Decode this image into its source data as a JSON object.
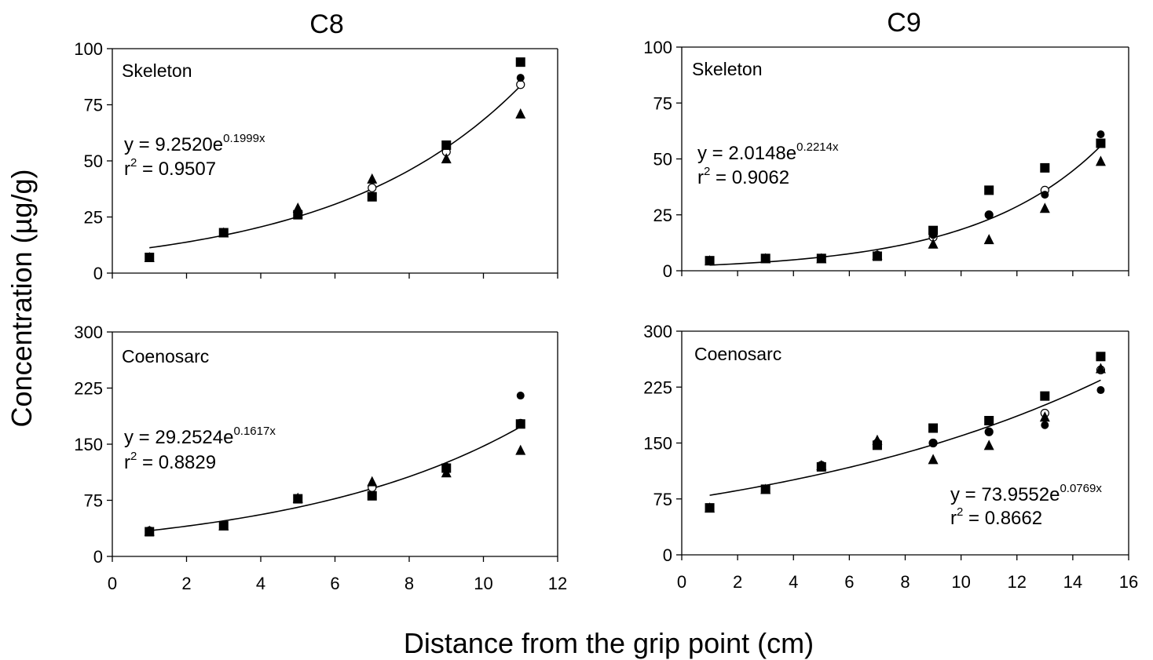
{
  "figure": {
    "column_titles": [
      "C8",
      "C9"
    ],
    "xlabel": "Distance from the grip point (cm)",
    "ylabel": "Concentration (µg/g)"
  },
  "chart_data": [
    {
      "type": "scatter",
      "column": "C8",
      "panel_label": "Skeleton",
      "xlim": [
        0,
        12
      ],
      "xticks": [
        0,
        2,
        4,
        6,
        8,
        10,
        12
      ],
      "ylim": [
        0,
        100
      ],
      "yticks": [
        0,
        25,
        50,
        75,
        100
      ],
      "show_x_tick_labels": false,
      "x": [
        1,
        3,
        5,
        7,
        9,
        11
      ],
      "series": [
        {
          "marker": "circle-filled",
          "values": [
            7,
            18,
            26,
            34,
            57,
            87
          ]
        },
        {
          "marker": "circle-open",
          "values": [
            7,
            18,
            27,
            38,
            54,
            84
          ]
        },
        {
          "marker": "triangle",
          "values": [
            7,
            18,
            29,
            42,
            51,
            71
          ]
        },
        {
          "marker": "square",
          "values": [
            7,
            18,
            26,
            34,
            57,
            94
          ]
        }
      ],
      "fit": {
        "a": 9.252,
        "b": 0.1999,
        "x_range": [
          1,
          11
        ]
      },
      "equation": {
        "lhs": "y = 9.2520e",
        "exp": "0.1999x",
        "r_pre": "r",
        "r_exp": "2",
        "r_post": " = 0.9507"
      }
    },
    {
      "type": "scatter",
      "column": "C9",
      "panel_label": "Skeleton",
      "xlim": [
        0,
        16
      ],
      "xticks": [
        0,
        2,
        4,
        6,
        8,
        10,
        12,
        14,
        16
      ],
      "ylim": [
        0,
        100
      ],
      "yticks": [
        0,
        25,
        50,
        75,
        100
      ],
      "show_x_tick_labels": false,
      "x": [
        1,
        3,
        5,
        7,
        9,
        11,
        13,
        15
      ],
      "series": [
        {
          "marker": "circle-filled",
          "values": [
            4.5,
            5.5,
            5.5,
            7,
            16,
            25,
            34,
            61
          ]
        },
        {
          "marker": "circle-open",
          "values": [
            4.5,
            5.5,
            5.5,
            7,
            15,
            25,
            36,
            57
          ]
        },
        {
          "marker": "triangle",
          "values": [
            4.5,
            5.5,
            5.5,
            7,
            12,
            14,
            28,
            49
          ]
        },
        {
          "marker": "square",
          "values": [
            4.5,
            5.5,
            5.5,
            6.5,
            18,
            36,
            46,
            57
          ]
        }
      ],
      "fit": {
        "a": 2.0148,
        "b": 0.2214,
        "x_range": [
          1,
          15
        ]
      },
      "equation": {
        "lhs": "y = 2.0148e",
        "exp": "0.2214x",
        "r_pre": "r",
        "r_exp": "2",
        "r_post": " = 0.9062"
      }
    },
    {
      "type": "scatter",
      "column": "C8",
      "panel_label": "Coenosarc",
      "xlim": [
        0,
        12
      ],
      "xticks": [
        0,
        2,
        4,
        6,
        8,
        10,
        12
      ],
      "ylim": [
        0,
        300
      ],
      "yticks": [
        0,
        75,
        150,
        225,
        300
      ],
      "show_x_tick_labels": true,
      "x": [
        1,
        3,
        5,
        7,
        9,
        11
      ],
      "series": [
        {
          "marker": "circle-filled",
          "values": [
            35,
            42,
            78,
            82,
            120,
            215
          ]
        },
        {
          "marker": "circle-open",
          "values": [
            34,
            41,
            77,
            92,
            118,
            178
          ]
        },
        {
          "marker": "triangle",
          "values": [
            34,
            41,
            78,
            100,
            112,
            142
          ]
        },
        {
          "marker": "square",
          "values": [
            33,
            41,
            77,
            81,
            118,
            177
          ]
        }
      ],
      "fit": {
        "a": 29.2524,
        "b": 0.1617,
        "x_range": [
          1,
          11
        ]
      },
      "equation": {
        "lhs": "y = 29.2524e",
        "exp": "0.1617x",
        "r_pre": "r",
        "r_exp": "2",
        "r_post": " = 0.8829"
      }
    },
    {
      "type": "scatter",
      "column": "C9",
      "panel_label": "Coenosarc",
      "xlim": [
        0,
        16
      ],
      "xticks": [
        0,
        2,
        4,
        6,
        8,
        10,
        12,
        14,
        16
      ],
      "ylim": [
        0,
        300
      ],
      "yticks": [
        0,
        75,
        150,
        225,
        300
      ],
      "show_x_tick_labels": true,
      "x": [
        1,
        3,
        5,
        7,
        9,
        11,
        13,
        15
      ],
      "series": [
        {
          "marker": "circle-filled",
          "values": [
            63,
            88,
            120,
            148,
            150,
            165,
            174,
            221
          ]
        },
        {
          "marker": "circle-open",
          "values": [
            63,
            88,
            120,
            150,
            150,
            165,
            190,
            248
          ]
        },
        {
          "marker": "triangle",
          "values": [
            63,
            88,
            120,
            154,
            128,
            147,
            185,
            250
          ]
        },
        {
          "marker": "square",
          "values": [
            63,
            88,
            118,
            147,
            170,
            180,
            213,
            266
          ]
        }
      ],
      "fit": {
        "a": 73.9552,
        "b": 0.0769,
        "x_range": [
          1,
          15
        ]
      },
      "equation": {
        "lhs": "y = 73.9552e",
        "exp": "0.0769x",
        "r_pre": "r",
        "r_exp": "2",
        "r_post": " = 0.8662"
      }
    }
  ]
}
